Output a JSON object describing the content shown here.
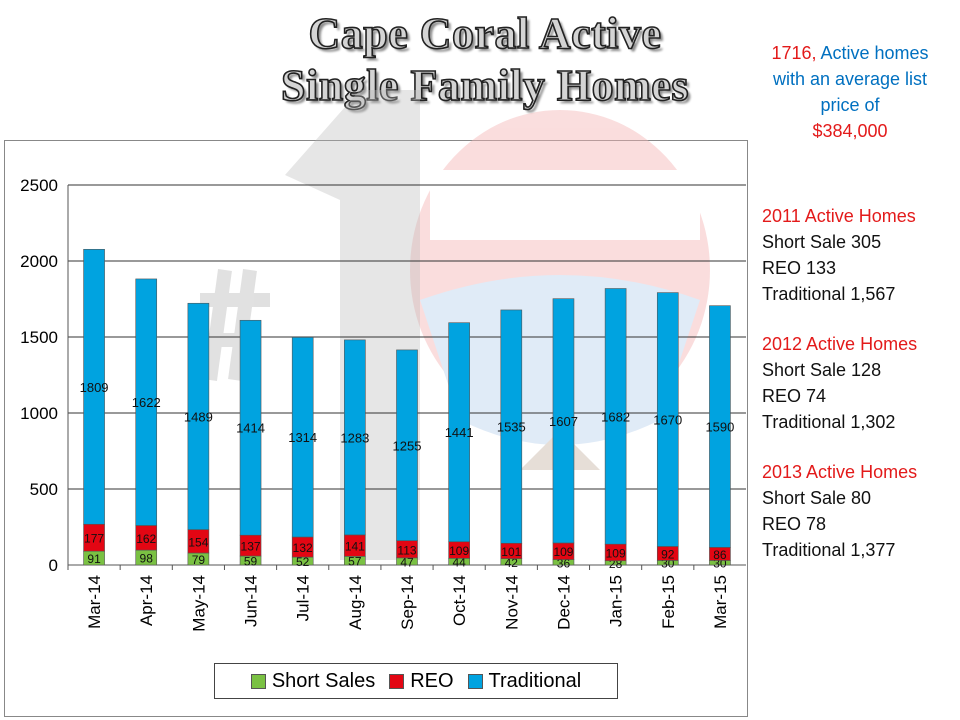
{
  "title": {
    "line1": "Cape Coral Active",
    "line2": "Single Family Homes"
  },
  "summary": {
    "count": "1716,",
    "text": "Active homes with an average list price of",
    "price": "$384,000"
  },
  "stats": [
    {
      "heading": "2011 Active Homes",
      "lines": [
        "Short Sale 305",
        "REO 133",
        "Traditional 1,567"
      ]
    },
    {
      "heading": "2012 Active Homes",
      "lines": [
        "Short Sale 128",
        "REO 74",
        "Traditional 1,302"
      ]
    },
    {
      "heading": "2013 Active Homes",
      "lines": [
        "Short Sale 80",
        "REO 78",
        "Traditional 1,377"
      ]
    }
  ],
  "colors": {
    "short_sales": "#7ac143",
    "reo": "#e30613",
    "traditional": "#00a3e0",
    "accent_red": "#e31a1a",
    "accent_blue": "#0070c0"
  },
  "chart_data": {
    "type": "bar",
    "stacked": true,
    "categories": [
      "Mar-14",
      "Apr-14",
      "May-14",
      "Jun-14",
      "Jul-14",
      "Aug-14",
      "Sep-14",
      "Oct-14",
      "Nov-14",
      "Dec-14",
      "Jan-15",
      "Feb-15",
      "Mar-15"
    ],
    "series": [
      {
        "name": "Short Sales",
        "values": [
          91,
          98,
          79,
          59,
          52,
          57,
          47,
          44,
          42,
          36,
          28,
          30,
          30
        ]
      },
      {
        "name": "REO",
        "values": [
          177,
          162,
          154,
          137,
          132,
          141,
          113,
          109,
          101,
          109,
          109,
          92,
          86
        ]
      },
      {
        "name": "Traditional",
        "values": [
          1809,
          1622,
          1489,
          1414,
          1314,
          1283,
          1255,
          1441,
          1535,
          1607,
          1682,
          1670,
          1590
        ]
      }
    ],
    "y_ticks": [
      0,
      500,
      1000,
      1500,
      2000,
      2500
    ],
    "ylim": [
      0,
      2500
    ],
    "grid": true,
    "legend": "bottom"
  }
}
